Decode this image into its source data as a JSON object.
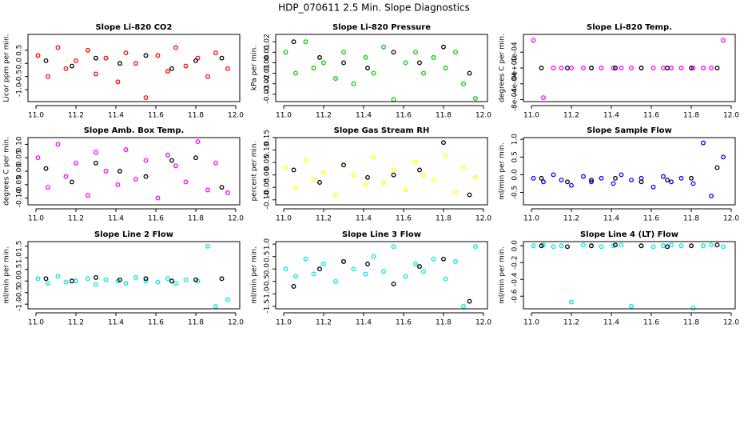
{
  "title": "HDP_070611  2.5 Min. Slope Diagnostics",
  "chart_data": [
    {
      "type": "scatter",
      "title": "Slope Li-820 CO2",
      "ylabel": "Licor ppm per min.",
      "xlim": [
        10.96,
        12.02
      ],
      "xticks": [
        {
          "value": 11.0,
          "label": "11.0"
        },
        11.2,
        11.4,
        11.6,
        11.8,
        {
          "value": 12.0,
          "label": "12.0"
        }
      ],
      "ylim": [
        -1.45,
        1.1
      ],
      "yticks": [
        {
          "value": -1.0,
          "label": "-1.0"
        },
        -0.5,
        {
          "value": 0.0,
          "label": "0.0"
        },
        0.5
      ],
      "series": [
        {
          "color": "#ff0000",
          "x": [
            11.01,
            11.06,
            11.11,
            11.15,
            11.2,
            11.26,
            11.3,
            11.35,
            11.41,
            11.45,
            11.5,
            11.55,
            11.61,
            11.66,
            11.7,
            11.75,
            11.81,
            11.86,
            11.9,
            11.96
          ],
          "values": [
            0.3,
            -0.5,
            0.6,
            -0.2,
            0.1,
            0.5,
            -0.4,
            0.2,
            -0.7,
            0.4,
            0.0,
            -1.3,
            0.3,
            -0.3,
            0.6,
            -0.1,
            0.2,
            -0.5,
            0.4,
            -0.2
          ]
        },
        {
          "color": "#000000",
          "x": [
            11.05,
            11.18,
            11.3,
            11.42,
            11.55,
            11.68,
            11.8,
            11.93
          ],
          "values": [
            0.1,
            -0.1,
            0.2,
            0.0,
            0.3,
            -0.2,
            0.1,
            0.2
          ]
        }
      ]
    },
    {
      "type": "scatter",
      "title": "Slope Li-820 Pressure",
      "ylabel": "kPa per min.",
      "xlim": [
        10.96,
        12.02
      ],
      "xticks": [
        {
          "value": 11.0,
          "label": "11.0"
        },
        11.2,
        11.4,
        11.6,
        11.8,
        {
          "value": 12.0,
          "label": "12.0"
        }
      ],
      "ylim": [
        -0.037,
        0.027
      ],
      "yticks": [
        -0.03,
        -0.02,
        -0.01,
        {
          "value": 0.0,
          "label": "0.00"
        },
        0.01,
        0.02
      ],
      "series": [
        {
          "color": "#00cc00",
          "x": [
            11.01,
            11.06,
            11.11,
            11.15,
            11.2,
            11.26,
            11.3,
            11.35,
            11.41,
            11.45,
            11.5,
            11.55,
            11.61,
            11.66,
            11.7,
            11.75,
            11.81,
            11.86,
            11.9,
            11.96
          ],
          "values": [
            0.01,
            -0.01,
            0.02,
            -0.005,
            0.0,
            -0.015,
            0.01,
            -0.02,
            0.005,
            -0.01,
            0.015,
            -0.035,
            0.0,
            0.01,
            -0.01,
            0.005,
            -0.005,
            0.01,
            -0.02,
            -0.034
          ]
        },
        {
          "color": "#000000",
          "x": [
            11.05,
            11.18,
            11.3,
            11.42,
            11.55,
            11.68,
            11.8,
            11.93
          ],
          "values": [
            0.02,
            0.005,
            0.0,
            -0.005,
            0.01,
            0.0,
            0.015,
            -0.01
          ]
        }
      ]
    },
    {
      "type": "scatter",
      "title": "Slope Li-820 Temp.",
      "ylabel": "degrees C per min.",
      "xlim": [
        10.96,
        12.02
      ],
      "xticks": [
        {
          "value": 11.0,
          "label": "11.0"
        },
        11.2,
        11.4,
        11.6,
        11.8,
        {
          "value": 12.0,
          "label": "12.0"
        }
      ],
      "ylim": [
        -0.00085,
        0.00085
      ],
      "yticks": [
        {
          "value": -0.0008,
          "label": "-8e-04"
        },
        {
          "value": -0.0004,
          "label": "-4e-04"
        },
        {
          "value": 0.0,
          "label": "0e+00"
        },
        {
          "value": 0.0004,
          "label": "4e-04"
        }
      ],
      "series": [
        {
          "color": "#ff00ff",
          "x": [
            11.01,
            11.06,
            11.11,
            11.15,
            11.2,
            11.26,
            11.3,
            11.35,
            11.41,
            11.45,
            11.5,
            11.55,
            11.61,
            11.66,
            11.7,
            11.75,
            11.81,
            11.86,
            11.9,
            11.96
          ],
          "values": [
            0.0007,
            -0.00075,
            0,
            0,
            0,
            0,
            0,
            0,
            0,
            0,
            0,
            0,
            0,
            0,
            0,
            0,
            0,
            0,
            0,
            0.0007
          ]
        },
        {
          "color": "#000000",
          "x": [
            11.05,
            11.18,
            11.3,
            11.42,
            11.55,
            11.68,
            11.8,
            11.93
          ],
          "values": [
            0,
            0,
            0,
            0,
            0,
            0,
            0,
            0
          ]
        }
      ]
    },
    {
      "type": "scatter",
      "title": "Slope Amb. Box Temp.",
      "ylabel": "degrees C per min.",
      "xlim": [
        10.96,
        12.02
      ],
      "xticks": [
        {
          "value": 11.0,
          "label": "11.0"
        },
        11.2,
        11.4,
        11.6,
        11.8,
        {
          "value": 12.0,
          "label": "12.0"
        }
      ],
      "ylim": [
        -0.125,
        0.125
      ],
      "yticks": [
        {
          "value": -0.1,
          "label": "-0.10"
        },
        -0.05,
        {
          "value": 0.0,
          "label": "0.00"
        },
        0.05,
        {
          "value": 0.1,
          "label": "0.10"
        }
      ],
      "series": [
        {
          "color": "#ff00ff",
          "x": [
            11.01,
            11.06,
            11.11,
            11.15,
            11.2,
            11.26,
            11.3,
            11.35,
            11.41,
            11.45,
            11.5,
            11.55,
            11.61,
            11.66,
            11.7,
            11.75,
            11.81,
            11.86,
            11.9,
            11.96
          ],
          "values": [
            0.05,
            -0.06,
            0.1,
            -0.02,
            0.03,
            -0.09,
            0.07,
            0.0,
            -0.05,
            0.08,
            -0.03,
            0.04,
            -0.1,
            0.06,
            0.02,
            -0.04,
            0.11,
            -0.07,
            0.03,
            -0.08
          ]
        },
        {
          "color": "#000000",
          "x": [
            11.05,
            11.18,
            11.3,
            11.42,
            11.55,
            11.68,
            11.8,
            11.93
          ],
          "values": [
            0.01,
            -0.04,
            0.03,
            0.0,
            -0.02,
            0.04,
            0.05,
            -0.06
          ]
        }
      ]
    },
    {
      "type": "scatter",
      "title": "Slope Gas Stream RH",
      "ylabel": "percent per min.",
      "xlim": [
        10.96,
        12.02
      ],
      "xticks": [
        {
          "value": 11.0,
          "label": "11.0"
        },
        11.2,
        11.4,
        11.6,
        11.8,
        {
          "value": 12.0,
          "label": "12.0"
        }
      ],
      "ylim": [
        -0.12,
        0.15
      ],
      "yticks": [
        {
          "value": -0.1,
          "label": "-0.10"
        },
        -0.05,
        {
          "value": 0.0,
          "label": "0.00"
        },
        0.05,
        {
          "value": 0.1,
          "label": "0.10"
        },
        0.15
      ],
      "series": [
        {
          "color": "#ffff00",
          "x": [
            11.01,
            11.06,
            11.11,
            11.15,
            11.2,
            11.26,
            11.3,
            11.35,
            11.41,
            11.45,
            11.5,
            11.55,
            11.61,
            11.66,
            11.7,
            11.75,
            11.81,
            11.86,
            11.9,
            11.96
          ],
          "values": [
            0.03,
            -0.05,
            0.06,
            -0.02,
            0.01,
            -0.08,
            0.04,
            0.0,
            -0.04,
            0.07,
            -0.03,
            0.02,
            -0.06,
            0.05,
            0.0,
            -0.02,
            0.08,
            -0.07,
            0.03,
            -0.01
          ]
        },
        {
          "color": "#000000",
          "x": [
            11.05,
            11.18,
            11.3,
            11.42,
            11.55,
            11.68,
            11.8,
            11.93
          ],
          "values": [
            0.02,
            -0.03,
            0.04,
            -0.01,
            0.0,
            0.02,
            0.13,
            -0.08
          ]
        }
      ]
    },
    {
      "type": "scatter",
      "title": "Slope Sample Flow",
      "ylabel": "ml/min per min.",
      "xlim": [
        10.96,
        12.02
      ],
      "xticks": [
        {
          "value": 11.0,
          "label": "11.0"
        },
        11.2,
        11.4,
        11.6,
        11.8,
        {
          "value": 12.0,
          "label": "12.0"
        }
      ],
      "ylim": [
        -0.85,
        1.05
      ],
      "yticks": [
        -0.5,
        {
          "value": 0.0,
          "label": "0.0"
        },
        0.5,
        {
          "value": 1.0,
          "label": "1.0"
        }
      ],
      "series": [
        {
          "color": "#0000ff",
          "x": [
            11.01,
            11.06,
            11.11,
            11.15,
            11.2,
            11.26,
            11.3,
            11.35,
            11.41,
            11.45,
            11.5,
            11.55,
            11.61,
            11.66,
            11.7,
            11.75,
            11.81,
            11.86,
            11.9,
            11.96
          ],
          "values": [
            -0.1,
            -0.2,
            0.0,
            -0.15,
            -0.3,
            -0.05,
            -0.2,
            -0.1,
            -0.25,
            0.0,
            -0.15,
            -0.1,
            -0.35,
            -0.05,
            -0.2,
            -0.1,
            -0.25,
            0.9,
            -0.6,
            0.5
          ]
        },
        {
          "color": "#000000",
          "x": [
            11.05,
            11.18,
            11.3,
            11.42,
            11.55,
            11.68,
            11.8,
            11.93
          ],
          "values": [
            -0.1,
            -0.2,
            -0.15,
            -0.1,
            -0.2,
            -0.15,
            -0.1,
            0.2
          ]
        }
      ]
    },
    {
      "type": "scatter",
      "title": "Slope Line 2 Flow",
      "ylabel": "ml/min per min.",
      "xlim": [
        10.96,
        12.02
      ],
      "xticks": [
        {
          "value": 11.0,
          "label": "11.0"
        },
        11.2,
        11.4,
        11.6,
        11.8,
        {
          "value": 12.0,
          "label": "12.0"
        }
      ],
      "ylim": [
        -1.2,
        1.7
      ],
      "yticks": [
        {
          "value": -1.0,
          "label": "-1.0"
        },
        -0.5,
        {
          "value": 0.0,
          "label": "0.0"
        },
        0.5,
        {
          "value": 1.0,
          "label": "1.0"
        },
        1.5
      ],
      "series": [
        {
          "color": "#00e5e5",
          "x": [
            11.01,
            11.06,
            11.11,
            11.15,
            11.2,
            11.26,
            11.3,
            11.35,
            11.41,
            11.45,
            11.5,
            11.55,
            11.61,
            11.66,
            11.7,
            11.75,
            11.81,
            11.86,
            11.9,
            11.96
          ],
          "values": [
            0.1,
            -0.1,
            0.2,
            -0.05,
            0.0,
            0.1,
            -0.15,
            0.05,
            0.0,
            -0.1,
            0.15,
            0.0,
            -0.05,
            0.1,
            -0.1,
            0.05,
            0.0,
            1.5,
            -1.1,
            -0.8
          ]
        },
        {
          "color": "#000000",
          "x": [
            11.05,
            11.18,
            11.3,
            11.42,
            11.55,
            11.68,
            11.8,
            11.93
          ],
          "values": [
            0.1,
            0.0,
            0.15,
            0.05,
            0.1,
            0.0,
            0.05,
            0.1
          ]
        }
      ]
    },
    {
      "type": "scatter",
      "title": "Slope Line 3 Flow",
      "ylabel": "ml/min per min.",
      "xlim": [
        10.96,
        12.02
      ],
      "xticks": [
        {
          "value": 11.0,
          "label": "11.0"
        },
        11.2,
        11.4,
        11.6,
        11.8,
        {
          "value": 12.0,
          "label": "12.0"
        }
      ],
      "ylim": [
        -1.6,
        1.1
      ],
      "yticks": [
        -1.5,
        {
          "value": -1.0,
          "label": "-1.0"
        },
        -0.5,
        {
          "value": 0.0,
          "label": "0.0"
        },
        0.5,
        {
          "value": 1.0,
          "label": "1.0"
        }
      ],
      "series": [
        {
          "color": "#00e5e5",
          "x": [
            11.01,
            11.06,
            11.11,
            11.15,
            11.2,
            11.26,
            11.3,
            11.35,
            11.41,
            11.45,
            11.5,
            11.55,
            11.61,
            11.66,
            11.7,
            11.75,
            11.81,
            11.86,
            11.9,
            11.96
          ],
          "values": [
            0.0,
            -0.3,
            0.4,
            -0.2,
            0.2,
            -0.5,
            0.3,
            0.0,
            -0.2,
            0.5,
            -0.1,
            0.9,
            -0.3,
            0.2,
            -0.1,
            0.4,
            -0.4,
            0.3,
            -1.5,
            0.9
          ]
        },
        {
          "color": "#000000",
          "x": [
            11.05,
            11.18,
            11.3,
            11.42,
            11.55,
            11.68,
            11.8,
            11.93
          ],
          "values": [
            -0.7,
            0.0,
            0.3,
            0.2,
            -0.6,
            0.1,
            0.4,
            -1.3
          ]
        }
      ]
    },
    {
      "type": "scatter",
      "title": "Slope Line 4 (LT) Flow",
      "ylabel": "ml/min per min.",
      "xlim": [
        10.96,
        12.02
      ],
      "xticks": [
        {
          "value": 11.0,
          "label": "11.0"
        },
        11.2,
        11.4,
        11.6,
        11.8,
        {
          "value": 12.0,
          "label": "12.0"
        }
      ],
      "ylim": [
        -0.75,
        0.05
      ],
      "yticks": [
        -0.6,
        -0.4,
        -0.2,
        {
          "value": 0.0,
          "label": "0.0"
        }
      ],
      "series": [
        {
          "color": "#00e5e5",
          "x": [
            11.01,
            11.06,
            11.11,
            11.15,
            11.2,
            11.26,
            11.3,
            11.35,
            11.41,
            11.45,
            11.5,
            11.55,
            11.61,
            11.66,
            11.7,
            11.75,
            11.81,
            11.86,
            11.9,
            11.96
          ],
          "values": [
            0.0,
            0.01,
            -0.01,
            0.0,
            -0.67,
            0.01,
            0.0,
            -0.01,
            0.0,
            0.01,
            -0.72,
            0.0,
            -0.01,
            0.0,
            0.01,
            0.0,
            -0.74,
            0.0,
            0.01,
            -0.01
          ]
        },
        {
          "color": "#000000",
          "x": [
            11.05,
            11.18,
            11.3,
            11.42,
            11.55,
            11.68,
            11.8,
            11.93
          ],
          "values": [
            0.0,
            -0.01,
            0.0,
            0.01,
            0.0,
            -0.01,
            0.0,
            0.01
          ]
        }
      ]
    }
  ]
}
